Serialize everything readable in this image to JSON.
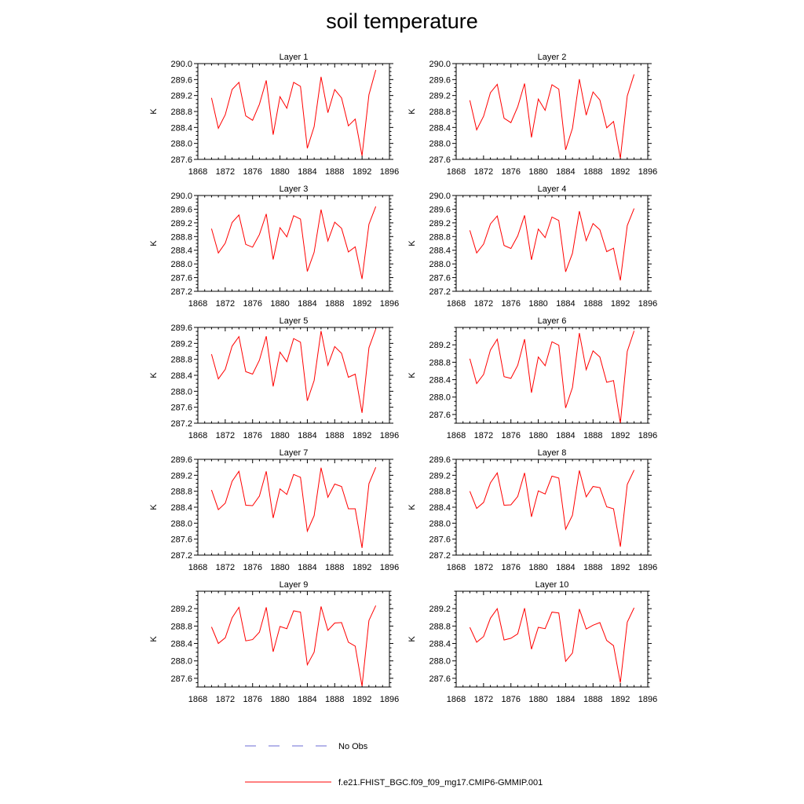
{
  "title": "soil temperature",
  "legend": {
    "items": [
      {
        "label": "No Obs",
        "color": "#6b6bd6",
        "dash": true
      },
      {
        "label": "f.e21.FHIST_BGC.f09_f09_mg17.CMIP6-GMMIP.001",
        "color": "#ff0000",
        "dash": false
      }
    ]
  },
  "chart_data": [
    {
      "type": "line",
      "title": "Layer 1",
      "ylabel": "K",
      "xlim": [
        1868,
        1896
      ],
      "ylim": [
        287.6,
        290.0
      ],
      "xticks": [
        1868,
        1872,
        1876,
        1880,
        1884,
        1888,
        1892,
        1896
      ],
      "yticks": [
        287.6,
        288.0,
        288.4,
        288.8,
        289.2,
        289.6,
        290.0
      ],
      "series": [
        {
          "color": "#ff0000",
          "x": [
            1870,
            1871,
            1872,
            1873,
            1874,
            1875,
            1876,
            1877,
            1878,
            1879,
            1880,
            1881,
            1882,
            1883,
            1884,
            1885,
            1886,
            1887,
            1888,
            1889,
            1890,
            1891,
            1892,
            1893,
            1894
          ],
          "values": [
            289.14,
            288.38,
            288.72,
            289.35,
            289.53,
            288.69,
            288.58,
            288.98,
            289.58,
            288.22,
            289.17,
            288.88,
            289.53,
            289.43,
            287.88,
            288.42,
            289.67,
            288.77,
            289.35,
            289.14,
            288.44,
            288.61,
            287.69,
            289.22,
            289.84
          ]
        }
      ]
    },
    {
      "type": "line",
      "title": "Layer 2",
      "ylabel": "K",
      "xlim": [
        1868,
        1896
      ],
      "ylim": [
        287.6,
        290.0
      ],
      "xticks": [
        1868,
        1872,
        1876,
        1880,
        1884,
        1888,
        1892,
        1896
      ],
      "yticks": [
        287.6,
        288.0,
        288.4,
        288.8,
        289.2,
        289.6,
        290.0
      ],
      "series": [
        {
          "color": "#ff0000",
          "x": [
            1870,
            1871,
            1872,
            1873,
            1874,
            1875,
            1876,
            1877,
            1878,
            1879,
            1880,
            1881,
            1882,
            1883,
            1884,
            1885,
            1886,
            1887,
            1888,
            1889,
            1890,
            1891,
            1892,
            1893,
            1894
          ],
          "values": [
            289.08,
            288.34,
            288.68,
            289.27,
            289.48,
            288.63,
            288.52,
            288.92,
            289.5,
            288.15,
            289.11,
            288.83,
            289.47,
            289.36,
            287.84,
            288.38,
            289.61,
            288.71,
            289.29,
            289.09,
            288.39,
            288.55,
            287.63,
            289.19,
            289.73
          ]
        }
      ]
    },
    {
      "type": "line",
      "title": "Layer 3",
      "ylabel": "K",
      "xlim": [
        1868,
        1896
      ],
      "ylim": [
        287.2,
        290.0
      ],
      "xticks": [
        1868,
        1872,
        1876,
        1880,
        1884,
        1888,
        1892,
        1896
      ],
      "yticks": [
        287.2,
        287.6,
        288.0,
        288.4,
        288.8,
        289.2,
        289.6,
        290.0
      ],
      "series": [
        {
          "color": "#ff0000",
          "x": [
            1870,
            1871,
            1872,
            1873,
            1874,
            1875,
            1876,
            1877,
            1878,
            1879,
            1880,
            1881,
            1882,
            1883,
            1884,
            1885,
            1886,
            1887,
            1888,
            1889,
            1890,
            1891,
            1892,
            1893,
            1894
          ],
          "values": [
            289.03,
            288.32,
            288.61,
            289.21,
            289.43,
            288.57,
            288.49,
            288.86,
            289.46,
            288.13,
            289.06,
            288.79,
            289.41,
            289.31,
            287.78,
            288.34,
            289.59,
            288.67,
            289.22,
            289.04,
            288.35,
            288.5,
            287.56,
            289.16,
            289.68
          ]
        }
      ]
    },
    {
      "type": "line",
      "title": "Layer 4",
      "ylabel": "K",
      "xlim": [
        1868,
        1896
      ],
      "ylim": [
        287.2,
        290.0
      ],
      "xticks": [
        1868,
        1872,
        1876,
        1880,
        1884,
        1888,
        1892,
        1896
      ],
      "yticks": [
        287.2,
        287.6,
        288.0,
        288.4,
        288.8,
        289.2,
        289.6,
        290.0
      ],
      "series": [
        {
          "color": "#ff0000",
          "x": [
            1870,
            1871,
            1872,
            1873,
            1874,
            1875,
            1876,
            1877,
            1878,
            1879,
            1880,
            1881,
            1882,
            1883,
            1884,
            1885,
            1886,
            1887,
            1888,
            1889,
            1890,
            1891,
            1892,
            1893,
            1894
          ],
          "values": [
            288.98,
            288.32,
            288.58,
            289.17,
            289.4,
            288.54,
            288.45,
            288.82,
            289.42,
            288.12,
            289.02,
            288.77,
            289.37,
            289.27,
            287.77,
            288.31,
            289.54,
            288.68,
            289.18,
            289.0,
            288.36,
            288.46,
            287.52,
            289.12,
            289.62
          ]
        }
      ]
    },
    {
      "type": "line",
      "title": "Layer 5",
      "ylabel": "K",
      "xlim": [
        1868,
        1896
      ],
      "ylim": [
        287.2,
        289.6
      ],
      "xticks": [
        1868,
        1872,
        1876,
        1880,
        1884,
        1888,
        1892,
        1896
      ],
      "yticks": [
        287.2,
        287.6,
        288.0,
        288.4,
        288.8,
        289.2,
        289.6
      ],
      "series": [
        {
          "color": "#ff0000",
          "x": [
            1870,
            1871,
            1872,
            1873,
            1874,
            1875,
            1876,
            1877,
            1878,
            1879,
            1880,
            1881,
            1882,
            1883,
            1884,
            1885,
            1886,
            1887,
            1888,
            1889,
            1890,
            1891,
            1892,
            1893,
            1894
          ],
          "values": [
            288.93,
            288.31,
            288.55,
            289.13,
            289.37,
            288.49,
            288.43,
            288.78,
            289.38,
            288.12,
            288.98,
            288.74,
            289.32,
            289.23,
            287.76,
            288.27,
            289.51,
            288.65,
            289.12,
            288.95,
            288.35,
            288.43,
            287.46,
            289.09,
            289.56
          ]
        }
      ]
    },
    {
      "type": "line",
      "title": "Layer 6",
      "ylabel": "K",
      "xlim": [
        1868,
        1896
      ],
      "ylim": [
        287.4,
        289.6
      ],
      "xticks": [
        1868,
        1872,
        1876,
        1880,
        1884,
        1888,
        1892,
        1896
      ],
      "yticks": [
        287.6,
        288.0,
        288.4,
        288.8,
        289.2
      ],
      "series": [
        {
          "color": "#ff0000",
          "x": [
            1870,
            1871,
            1872,
            1873,
            1874,
            1875,
            1876,
            1877,
            1878,
            1879,
            1880,
            1881,
            1882,
            1883,
            1884,
            1885,
            1886,
            1887,
            1888,
            1889,
            1890,
            1891,
            1892,
            1893,
            1894
          ],
          "values": [
            288.88,
            288.31,
            288.52,
            289.08,
            289.33,
            288.47,
            288.43,
            288.73,
            289.33,
            288.1,
            288.92,
            288.72,
            289.27,
            289.19,
            287.75,
            288.22,
            289.47,
            288.63,
            289.06,
            288.92,
            288.34,
            288.38,
            287.4,
            289.05,
            289.52
          ]
        }
      ]
    },
    {
      "type": "line",
      "title": "Layer 7",
      "ylabel": "K",
      "xlim": [
        1868,
        1896
      ],
      "ylim": [
        287.2,
        289.6
      ],
      "xticks": [
        1868,
        1872,
        1876,
        1880,
        1884,
        1888,
        1892,
        1896
      ],
      "yticks": [
        287.2,
        287.6,
        288.0,
        288.4,
        288.8,
        289.2,
        289.6
      ],
      "series": [
        {
          "color": "#ff0000",
          "x": [
            1870,
            1871,
            1872,
            1873,
            1874,
            1875,
            1876,
            1877,
            1878,
            1879,
            1880,
            1881,
            1882,
            1883,
            1884,
            1885,
            1886,
            1887,
            1888,
            1889,
            1890,
            1891,
            1892,
            1893,
            1894
          ],
          "values": [
            288.83,
            288.34,
            288.5,
            289.05,
            289.3,
            288.45,
            288.44,
            288.68,
            289.3,
            288.13,
            288.86,
            288.72,
            289.22,
            289.15,
            287.8,
            288.19,
            289.39,
            288.65,
            288.98,
            288.92,
            288.36,
            288.36,
            287.38,
            288.99,
            289.4
          ]
        }
      ]
    },
    {
      "type": "line",
      "title": "Layer 8",
      "ylabel": "K",
      "xlim": [
        1868,
        1896
      ],
      "ylim": [
        287.2,
        289.6
      ],
      "xticks": [
        1868,
        1872,
        1876,
        1880,
        1884,
        1888,
        1892,
        1896
      ],
      "yticks": [
        287.2,
        287.6,
        288.0,
        288.4,
        288.8,
        289.2,
        289.6
      ],
      "series": [
        {
          "color": "#ff0000",
          "x": [
            1870,
            1871,
            1872,
            1873,
            1874,
            1875,
            1876,
            1877,
            1878,
            1879,
            1880,
            1881,
            1882,
            1883,
            1884,
            1885,
            1886,
            1887,
            1888,
            1889,
            1890,
            1891,
            1892,
            1893,
            1894
          ],
          "values": [
            288.8,
            288.37,
            288.52,
            289.01,
            289.26,
            288.45,
            288.46,
            288.67,
            289.26,
            288.16,
            288.81,
            288.73,
            289.18,
            289.13,
            287.85,
            288.2,
            289.32,
            288.66,
            288.92,
            288.89,
            288.41,
            288.36,
            287.41,
            288.97,
            289.33
          ]
        }
      ]
    },
    {
      "type": "line",
      "title": "Layer 9",
      "ylabel": "K",
      "xlim": [
        1868,
        1896
      ],
      "ylim": [
        287.4,
        289.6
      ],
      "xticks": [
        1868,
        1872,
        1876,
        1880,
        1884,
        1888,
        1892,
        1896
      ],
      "yticks": [
        287.6,
        288.0,
        288.4,
        288.8,
        289.2
      ],
      "series": [
        {
          "color": "#ff0000",
          "x": [
            1870,
            1871,
            1872,
            1873,
            1874,
            1875,
            1876,
            1877,
            1878,
            1879,
            1880,
            1881,
            1882,
            1883,
            1884,
            1885,
            1886,
            1887,
            1888,
            1889,
            1890,
            1891,
            1892,
            1893,
            1894
          ],
          "values": [
            288.78,
            288.4,
            288.53,
            288.99,
            289.23,
            288.46,
            288.49,
            288.66,
            289.23,
            288.21,
            288.79,
            288.74,
            289.15,
            289.12,
            287.91,
            288.2,
            289.25,
            288.7,
            288.87,
            288.88,
            288.43,
            288.34,
            287.42,
            288.93,
            289.27
          ]
        }
      ]
    },
    {
      "type": "line",
      "title": "Layer 10",
      "ylabel": "K",
      "xlim": [
        1868,
        1896
      ],
      "ylim": [
        287.4,
        289.6
      ],
      "xticks": [
        1868,
        1872,
        1876,
        1880,
        1884,
        1888,
        1892,
        1896
      ],
      "yticks": [
        287.6,
        288.0,
        288.4,
        288.8,
        289.2
      ],
      "series": [
        {
          "color": "#ff0000",
          "x": [
            1870,
            1871,
            1872,
            1873,
            1874,
            1875,
            1876,
            1877,
            1878,
            1879,
            1880,
            1881,
            1882,
            1883,
            1884,
            1885,
            1886,
            1887,
            1888,
            1889,
            1890,
            1891,
            1892,
            1893,
            1894
          ],
          "values": [
            288.77,
            288.43,
            288.56,
            288.98,
            289.2,
            288.48,
            288.52,
            288.62,
            289.21,
            288.27,
            288.77,
            288.74,
            289.12,
            289.1,
            287.99,
            288.18,
            289.19,
            288.73,
            288.82,
            288.88,
            288.47,
            288.35,
            287.5,
            288.89,
            289.22
          ]
        }
      ]
    }
  ]
}
